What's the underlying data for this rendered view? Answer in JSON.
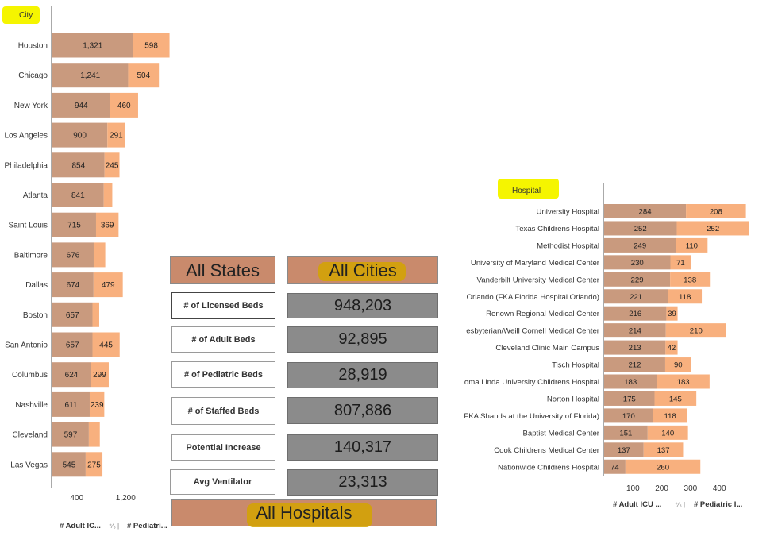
{
  "colors": {
    "adult": "#c99a7e",
    "pediatric": "#f8b07e",
    "axis": "#555555",
    "highlight": "#f5f500",
    "button": "#c98a6c",
    "value_box": "#8b8b8b"
  },
  "city_chart": {
    "title": "City",
    "x_ticks": [
      "400",
      "1,200"
    ],
    "legend_adult": "# Adult IC...",
    "legend_sep": "⁺⁄₃ |",
    "legend_pediatric": "# Pediatri...",
    "chart_data": {
      "type": "bar",
      "orientation": "horizontal",
      "stacked": true,
      "title": "City",
      "categories": [
        "Houston",
        "Chicago",
        "New York",
        "Los Angeles",
        "Philadelphia",
        "Atlanta",
        "Saint Louis",
        "Baltimore",
        "Dallas",
        "Boston",
        "San Antonio",
        "Columbus",
        "Nashville",
        "Cleveland",
        "Las Vegas"
      ],
      "series": [
        {
          "name": "# Adult IC...",
          "values": [
            1321,
            1241,
            944,
            900,
            854,
            841,
            715,
            676,
            674,
            657,
            657,
            624,
            611,
            597,
            545
          ],
          "labels": [
            "1,321",
            "1,241",
            "944",
            "900",
            "854",
            "841",
            "715",
            "676",
            "674",
            "657",
            "657",
            "624",
            "611",
            "597",
            "545"
          ]
        },
        {
          "name": "# Pediatri...",
          "values": [
            598,
            504,
            460,
            291,
            245,
            140,
            369,
            190,
            479,
            110,
            445,
            299,
            239,
            180,
            275
          ],
          "labels": [
            "598",
            "504",
            "460",
            "291",
            "245",
            "",
            "369",
            "",
            "479",
            "",
            "445",
            "299",
            "239",
            "",
            "275"
          ]
        }
      ]
    }
  },
  "hospital_chart": {
    "title": "Hospital",
    "x_ticks": [
      "100",
      "200",
      "300",
      "400"
    ],
    "legend_adult": "# Adult ICU ...",
    "legend_sep": "⁺⁄₃ |",
    "legend_pediatric": "# Pediatric I...",
    "chart_data": {
      "type": "bar",
      "orientation": "horizontal",
      "stacked": true,
      "title": "Hospital",
      "categories": [
        "University Hospital",
        "Texas Childrens Hospital",
        "Methodist Hospital",
        "University of Maryland Medical Center",
        "Vanderbilt University Medical Center",
        "Orlando (FKA Florida Hospital Orlando)",
        "Renown Regional Medical Center",
        "esbyterian/Weill Cornell Medical Center",
        "Cleveland Clinic Main Campus",
        "Tisch Hospital",
        "oma Linda University Childrens Hospital",
        "Norton Hospital",
        "FKA Shands at the University of Florida)",
        "Baptist Medical Center",
        "Cook Childrens Medical Center",
        "Nationwide Childrens Hospital"
      ],
      "series": [
        {
          "name": "# Adult ICU ...",
          "values": [
            284,
            252,
            249,
            230,
            229,
            221,
            216,
            214,
            213,
            212,
            183,
            175,
            170,
            151,
            137,
            74
          ],
          "labels": [
            "284",
            "252",
            "249",
            "230",
            "229",
            "221",
            "216",
            "214",
            "213",
            "212",
            "183",
            "175",
            "170",
            "151",
            "137",
            "74"
          ]
        },
        {
          "name": "# Pediatric I...",
          "values": [
            208,
            252,
            110,
            71,
            138,
            118,
            39,
            210,
            42,
            90,
            183,
            145,
            118,
            140,
            137,
            260
          ],
          "labels": [
            "208",
            "252",
            "110",
            "71",
            "138",
            "118",
            "39",
            "210",
            "42",
            "90",
            "183",
            "145",
            "118",
            "140",
            "137",
            "260"
          ]
        }
      ]
    }
  },
  "buttons": {
    "all_states": "All States",
    "all_cities": "All Cities",
    "all_hospitals": "All Hospitals"
  },
  "metrics": [
    {
      "label": "# of Licensed Beds",
      "value": "948,203"
    },
    {
      "label": "# of Adult Beds",
      "value": "92,895"
    },
    {
      "label": "# of Pediatric Beds",
      "value": "28,919"
    },
    {
      "label": "# of Staffed Beds",
      "value": "807,886"
    },
    {
      "label": "Potential Increase",
      "value": "140,317"
    },
    {
      "label": "Avg Ventilator",
      "value": "23,313"
    }
  ]
}
